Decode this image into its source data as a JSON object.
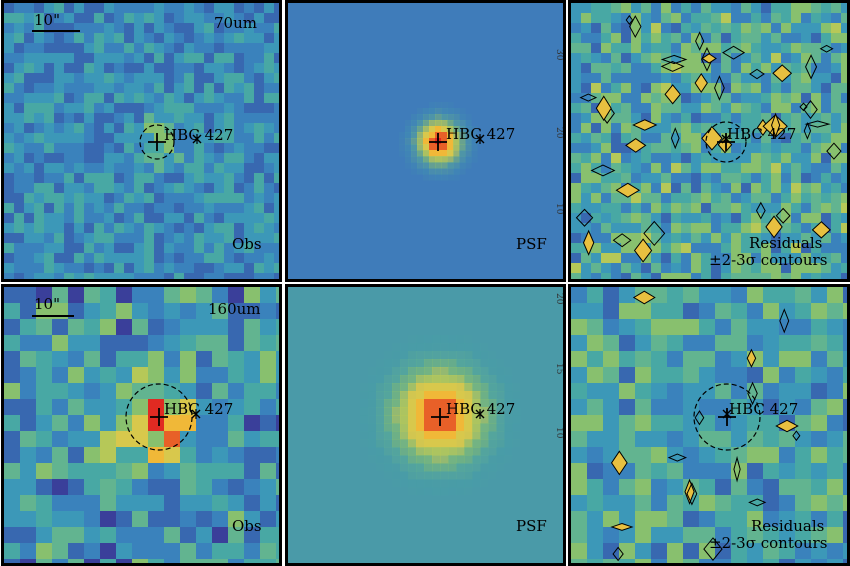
{
  "source": {
    "name": "HBC 427",
    "marker": "+",
    "offset_marker": "×"
  },
  "scale_bar": "10\"",
  "column_labels": {
    "obs": "Obs",
    "psf": "PSF",
    "residuals_line1": "Residuals",
    "residuals_line2": "±2-3σ contours"
  },
  "rows": [
    {
      "band": "70um",
      "axis_ticks": [
        "30",
        "20",
        "10"
      ]
    },
    {
      "band": "160um",
      "axis_ticks": [
        "20",
        "15",
        "10"
      ]
    }
  ],
  "colors": {
    "background": "#3a78b4",
    "psf_bg_70": "#3f7cba",
    "psf_bg_160": "#4a9aa8",
    "peak": "#e23a2a",
    "mid": "#f0a830"
  }
}
